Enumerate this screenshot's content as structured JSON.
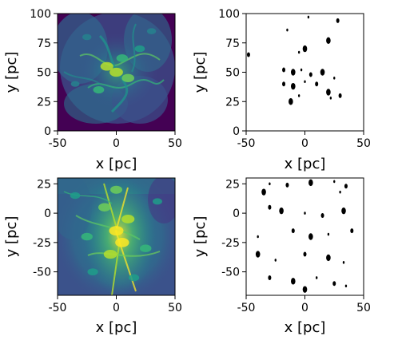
{
  "chart_data": [
    {
      "type": "heatmap",
      "panel": "top-left",
      "xlabel": "x [pc]",
      "ylabel": "y [pc]",
      "xlim": [
        -50,
        50
      ],
      "ylim": [
        0,
        100
      ],
      "xticks": [
        "-50",
        "0",
        "50"
      ],
      "yticks": [
        "0",
        "25",
        "50",
        "75",
        "100"
      ],
      "colormap": "viridis",
      "grid": false,
      "features": [
        {
          "x": 0,
          "y": 50,
          "intensity": 0.9
        },
        {
          "x": -8,
          "y": 55,
          "intensity": 0.85
        },
        {
          "x": 10,
          "y": 45,
          "intensity": 0.8
        },
        {
          "x": 5,
          "y": 62,
          "intensity": 0.7
        },
        {
          "x": -15,
          "y": 35,
          "intensity": 0.65
        },
        {
          "x": 20,
          "y": 70,
          "intensity": 0.55
        },
        {
          "x": -25,
          "y": 80,
          "intensity": 0.45
        },
        {
          "x": 30,
          "y": 85,
          "intensity": 0.45
        },
        {
          "x": -35,
          "y": 40,
          "intensity": 0.4
        }
      ]
    },
    {
      "type": "heatmap",
      "panel": "top-right",
      "xlabel": "x [pc]",
      "ylabel": "y [pc]",
      "xlim": [
        -50,
        50
      ],
      "ylim": [
        0,
        100
      ],
      "xticks": [
        "-50",
        "0",
        "50"
      ],
      "yticks": [
        "0",
        "25",
        "50",
        "75",
        "100"
      ],
      "colormap": "binary",
      "grid": false,
      "blobs": [
        {
          "x": 3,
          "y": 97
        },
        {
          "x": 28,
          "y": 94
        },
        {
          "x": 20,
          "y": 77
        },
        {
          "x": -15,
          "y": 86
        },
        {
          "x": -48,
          "y": 65
        },
        {
          "x": 0,
          "y": 70
        },
        {
          "x": -5,
          "y": 67
        },
        {
          "x": -18,
          "y": 52
        },
        {
          "x": -10,
          "y": 50
        },
        {
          "x": -3,
          "y": 52
        },
        {
          "x": 5,
          "y": 48
        },
        {
          "x": 15,
          "y": 50
        },
        {
          "x": 25,
          "y": 45
        },
        {
          "x": -18,
          "y": 40
        },
        {
          "x": -10,
          "y": 38
        },
        {
          "x": 0,
          "y": 42
        },
        {
          "x": 10,
          "y": 40
        },
        {
          "x": 20,
          "y": 33
        },
        {
          "x": -5,
          "y": 30
        },
        {
          "x": 30,
          "y": 30
        },
        {
          "x": -12,
          "y": 25
        },
        {
          "x": 22,
          "y": 28
        }
      ]
    },
    {
      "type": "heatmap",
      "panel": "bottom-left",
      "xlabel": "x [pc]",
      "ylabel": "y [pc]",
      "xlim": [
        -50,
        50
      ],
      "ylim": [
        -70,
        30
      ],
      "xticks": [
        "-50",
        "0",
        "50"
      ],
      "yticks": [
        "-50",
        "-25",
        "0",
        "25"
      ],
      "colormap": "viridis",
      "grid": false,
      "features": [
        {
          "x": 0,
          "y": -15,
          "intensity": 1.0
        },
        {
          "x": 5,
          "y": -25,
          "intensity": 0.95
        },
        {
          "x": -5,
          "y": -35,
          "intensity": 0.9
        },
        {
          "x": 10,
          "y": -5,
          "intensity": 0.85
        },
        {
          "x": -10,
          "y": 5,
          "intensity": 0.8
        },
        {
          "x": 0,
          "y": 20,
          "intensity": 0.75
        },
        {
          "x": -25,
          "y": -20,
          "intensity": 0.7
        },
        {
          "x": 25,
          "y": -30,
          "intensity": 0.7
        },
        {
          "x": -20,
          "y": -50,
          "intensity": 0.6
        },
        {
          "x": 15,
          "y": -55,
          "intensity": 0.6
        },
        {
          "x": -35,
          "y": 15,
          "intensity": 0.55
        },
        {
          "x": 35,
          "y": 10,
          "intensity": 0.5
        }
      ]
    },
    {
      "type": "heatmap",
      "panel": "bottom-right",
      "xlabel": "x [pc]",
      "ylabel": "y [pc]",
      "xlim": [
        -50,
        50
      ],
      "ylim": [
        -70,
        30
      ],
      "xticks": [
        "-50",
        "0",
        "50"
      ],
      "yticks": [
        "-50",
        "-25",
        "0",
        "25"
      ],
      "colormap": "binary",
      "grid": false,
      "blobs": [
        {
          "x": -30,
          "y": 25
        },
        {
          "x": -15,
          "y": 24
        },
        {
          "x": 5,
          "y": 26
        },
        {
          "x": 25,
          "y": 27
        },
        {
          "x": 35,
          "y": 23
        },
        {
          "x": -35,
          "y": 18
        },
        {
          "x": 30,
          "y": 18
        },
        {
          "x": -30,
          "y": 5
        },
        {
          "x": -20,
          "y": 2
        },
        {
          "x": 0,
          "y": 0
        },
        {
          "x": 15,
          "y": -2
        },
        {
          "x": 33,
          "y": 2
        },
        {
          "x": -40,
          "y": -20
        },
        {
          "x": -10,
          "y": -15
        },
        {
          "x": 5,
          "y": -20
        },
        {
          "x": 20,
          "y": -18
        },
        {
          "x": 40,
          "y": -15
        },
        {
          "x": -40,
          "y": -35
        },
        {
          "x": -25,
          "y": -40
        },
        {
          "x": 0,
          "y": -35
        },
        {
          "x": 20,
          "y": -38
        },
        {
          "x": 33,
          "y": -42
        },
        {
          "x": -30,
          "y": -55
        },
        {
          "x": -10,
          "y": -58
        },
        {
          "x": 10,
          "y": -55
        },
        {
          "x": 25,
          "y": -60
        },
        {
          "x": 0,
          "y": -65
        },
        {
          "x": 35,
          "y": -62
        }
      ]
    }
  ]
}
